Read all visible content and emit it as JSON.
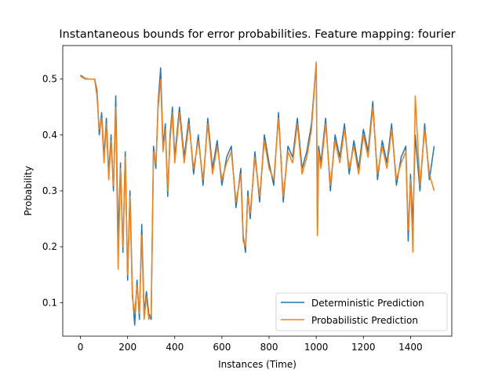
{
  "chart_data": {
    "type": "line",
    "title": "Instantaneous bounds for error probabilities. Feature mapping: fourier",
    "xlabel": "Instances (Time)",
    "ylabel": "Probability",
    "xlim": [
      -75,
      1575
    ],
    "ylim": [
      0.04,
      0.56
    ],
    "xticks": [
      0,
      200,
      400,
      600,
      800,
      1000,
      1200,
      1400
    ],
    "yticks": [
      0.1,
      0.2,
      0.3,
      0.4,
      0.5
    ],
    "xtick_labels": [
      "0",
      "200",
      "400",
      "600",
      "800",
      "1000",
      "1200",
      "1400"
    ],
    "ytick_labels": [
      "0.1",
      "0.2",
      "0.3",
      "0.4",
      "0.5"
    ],
    "grid": false,
    "legend_position": "lower-right",
    "series": [
      {
        "name": "Deterministic Prediction",
        "color": "#1f77b4",
        "x": [
          0,
          20,
          40,
          60,
          70,
          80,
          90,
          100,
          110,
          120,
          130,
          140,
          150,
          160,
          170,
          180,
          190,
          200,
          210,
          220,
          230,
          240,
          250,
          260,
          270,
          280,
          290,
          300,
          310,
          320,
          330,
          340,
          350,
          360,
          370,
          380,
          390,
          400,
          420,
          440,
          460,
          480,
          500,
          520,
          540,
          560,
          580,
          600,
          620,
          640,
          660,
          680,
          690,
          700,
          710,
          720,
          740,
          760,
          780,
          800,
          820,
          840,
          860,
          880,
          900,
          920,
          940,
          960,
          980,
          1000,
          1005,
          1010,
          1020,
          1040,
          1060,
          1080,
          1100,
          1120,
          1140,
          1160,
          1180,
          1200,
          1220,
          1240,
          1260,
          1280,
          1300,
          1320,
          1340,
          1360,
          1380,
          1390,
          1400,
          1410,
          1420,
          1440,
          1460,
          1480,
          1500
        ],
        "y": [
          0.507,
          0.501,
          0.5,
          0.5,
          0.48,
          0.4,
          0.44,
          0.36,
          0.43,
          0.33,
          0.4,
          0.3,
          0.47,
          0.21,
          0.35,
          0.19,
          0.37,
          0.14,
          0.3,
          0.12,
          0.06,
          0.14,
          0.07,
          0.24,
          0.08,
          0.12,
          0.08,
          0.07,
          0.38,
          0.34,
          0.46,
          0.52,
          0.38,
          0.42,
          0.29,
          0.4,
          0.45,
          0.36,
          0.45,
          0.36,
          0.43,
          0.33,
          0.4,
          0.31,
          0.43,
          0.34,
          0.39,
          0.31,
          0.36,
          0.38,
          0.27,
          0.34,
          0.22,
          0.19,
          0.3,
          0.25,
          0.37,
          0.28,
          0.4,
          0.35,
          0.31,
          0.44,
          0.28,
          0.38,
          0.36,
          0.43,
          0.34,
          0.37,
          0.42,
          0.53,
          0.22,
          0.38,
          0.35,
          0.43,
          0.3,
          0.4,
          0.36,
          0.42,
          0.33,
          0.39,
          0.34,
          0.41,
          0.37,
          0.46,
          0.32,
          0.39,
          0.35,
          0.42,
          0.31,
          0.36,
          0.38,
          0.21,
          0.33,
          0.24,
          0.4,
          0.3,
          0.42,
          0.32,
          0.38
        ]
      },
      {
        "name": "Probabilistic Prediction",
        "color": "#ff7f0e",
        "x": [
          0,
          20,
          40,
          60,
          70,
          80,
          90,
          100,
          110,
          120,
          130,
          140,
          150,
          160,
          170,
          180,
          190,
          200,
          210,
          220,
          230,
          240,
          250,
          260,
          270,
          280,
          290,
          300,
          310,
          320,
          330,
          340,
          350,
          360,
          370,
          380,
          390,
          400,
          420,
          440,
          460,
          480,
          500,
          520,
          540,
          560,
          580,
          600,
          620,
          640,
          660,
          680,
          690,
          700,
          710,
          720,
          740,
          760,
          780,
          800,
          820,
          840,
          860,
          880,
          900,
          920,
          940,
          960,
          980,
          1000,
          1005,
          1010,
          1020,
          1040,
          1060,
          1080,
          1100,
          1120,
          1140,
          1160,
          1180,
          1200,
          1220,
          1240,
          1260,
          1280,
          1300,
          1320,
          1340,
          1360,
          1380,
          1390,
          1400,
          1410,
          1420,
          1440,
          1460,
          1480,
          1500
        ],
        "y": [
          0.505,
          0.5,
          0.5,
          0.5,
          0.47,
          0.41,
          0.43,
          0.35,
          0.42,
          0.32,
          0.39,
          0.31,
          0.45,
          0.16,
          0.34,
          0.2,
          0.36,
          0.15,
          0.29,
          0.11,
          0.08,
          0.13,
          0.08,
          0.22,
          0.07,
          0.11,
          0.07,
          0.08,
          0.37,
          0.35,
          0.45,
          0.5,
          0.37,
          0.41,
          0.3,
          0.39,
          0.44,
          0.35,
          0.44,
          0.35,
          0.42,
          0.34,
          0.39,
          0.32,
          0.42,
          0.33,
          0.38,
          0.32,
          0.35,
          0.37,
          0.28,
          0.33,
          0.21,
          0.2,
          0.29,
          0.26,
          0.36,
          0.29,
          0.39,
          0.34,
          0.32,
          0.43,
          0.29,
          0.37,
          0.35,
          0.42,
          0.33,
          0.36,
          0.41,
          0.53,
          0.22,
          0.37,
          0.34,
          0.42,
          0.31,
          0.39,
          0.35,
          0.41,
          0.34,
          0.38,
          0.33,
          0.4,
          0.36,
          0.45,
          0.33,
          0.38,
          0.34,
          0.41,
          0.32,
          0.35,
          0.37,
          0.23,
          0.32,
          0.19,
          0.47,
          0.31,
          0.41,
          0.33,
          0.3
        ]
      }
    ]
  }
}
